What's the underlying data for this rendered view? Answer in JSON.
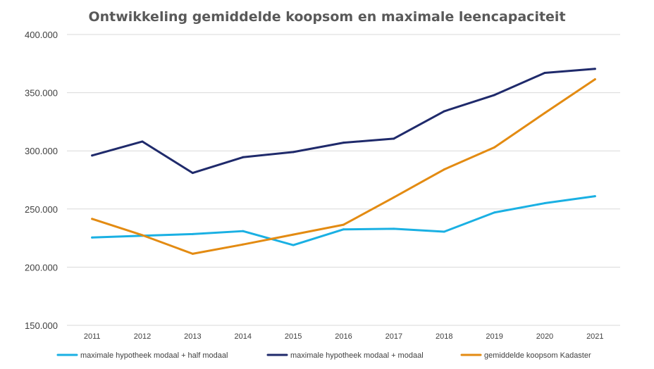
{
  "chart_data": {
    "type": "line",
    "title": "Ontwikkeling gemiddelde koopsom en maximale leencapaciteit",
    "xlabel": "",
    "ylabel": "",
    "categories": [
      "2011",
      "2012",
      "2013",
      "2014",
      "2015",
      "2016",
      "2017",
      "2018",
      "2019",
      "2020",
      "2021"
    ],
    "ylim": [
      150000,
      400000
    ],
    "yticks": [
      150000,
      200000,
      250000,
      300000,
      350000,
      400000
    ],
    "ytick_labels": [
      "150.000",
      "200.000",
      "250.000",
      "300.000",
      "350.000",
      "400.000"
    ],
    "grid": true,
    "legend_position": "bottom",
    "series": [
      {
        "name": "maximale hypotheek modaal + half modaal",
        "color": "#1ab0e3",
        "values": [
          225500,
          227000,
          228500,
          231000,
          219000,
          232500,
          233000,
          230500,
          247000,
          255000,
          261000
        ]
      },
      {
        "name": "maximale hypotheek modaal + modaal",
        "color": "#1f2a6b",
        "values": [
          296000,
          308000,
          281000,
          294500,
          299000,
          307000,
          310500,
          334000,
          348000,
          367000,
          370500
        ]
      },
      {
        "name": "gemiddelde koopsom Kadaster",
        "color": "#e38b12",
        "values": [
          241500,
          227500,
          211500,
          219500,
          228000,
          236500,
          260000,
          284000,
          303000,
          332500,
          361500
        ]
      }
    ]
  }
}
